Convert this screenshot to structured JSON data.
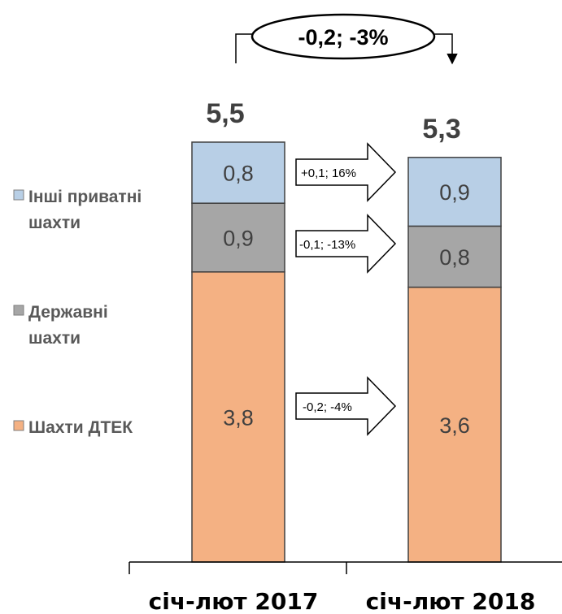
{
  "colors": {
    "other": "#b8cfe6",
    "state": "#a6a6a6",
    "dtek": "#f4b183",
    "border": "#404040"
  },
  "chart_data": {
    "type": "bar",
    "stacked": true,
    "categories": [
      "січ-лют 2017",
      "січ-лют 2018"
    ],
    "series": [
      {
        "name": "Шахти ДТЕК",
        "values": [
          3.8,
          3.6
        ],
        "labels": [
          "3,8",
          "3,6"
        ],
        "color": "#f4b183"
      },
      {
        "name": "Державні шахти",
        "values": [
          0.9,
          0.8
        ],
        "labels": [
          "0,9",
          "0,8"
        ],
        "color": "#a6a6a6"
      },
      {
        "name": "Інші приватні шахти",
        "values": [
          0.8,
          0.9
        ],
        "labels": [
          "0,8",
          "0,9"
        ],
        "color": "#b8cfe6"
      }
    ],
    "totals": [
      5.5,
      5.3
    ],
    "total_labels": [
      "5,5",
      "5,3"
    ],
    "legend": {
      "placement": "left",
      "entries": [
        {
          "lines": [
            "Інші приватні",
            "шахти"
          ],
          "color": "#b8cfe6"
        },
        {
          "lines": [
            "Державні",
            "шахти"
          ],
          "color": "#a6a6a6"
        },
        {
          "lines": [
            "Шахти ДТЕК"
          ],
          "color": "#f4b183"
        }
      ]
    },
    "change_annotations": [
      {
        "series": "Інші приватні шахти",
        "text": "+0,1; 16%"
      },
      {
        "series": "Державні шахти",
        "text": "-0,1; -13%"
      },
      {
        "series": "Шахти ДТЕК",
        "text": "-0,2; -4%"
      }
    ],
    "total_change": "-0,2; -3%",
    "grid": false
  }
}
